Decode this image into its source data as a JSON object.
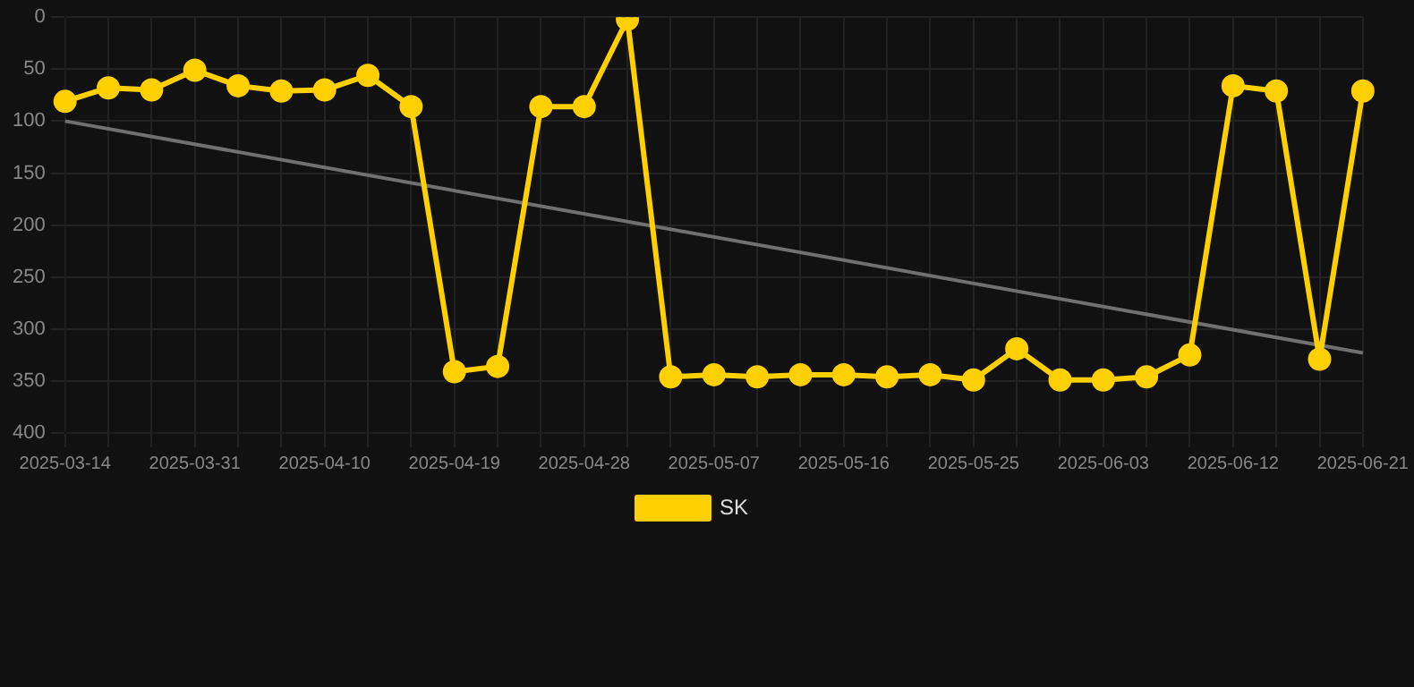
{
  "chart_data": {
    "type": "line",
    "categories": [
      "2025-03-14",
      null,
      null,
      "2025-03-31",
      null,
      null,
      "2025-04-10",
      null,
      null,
      "2025-04-19",
      null,
      null,
      "2025-04-28",
      null,
      null,
      "2025-05-07",
      null,
      null,
      "2025-05-16",
      null,
      null,
      "2025-05-25",
      null,
      null,
      "2025-06-03",
      null,
      null,
      "2025-06-12",
      null,
      null,
      "2025-06-21"
    ],
    "series": [
      {
        "name": "SK",
        "color": "#ffd000",
        "marker": "circle",
        "values": [
          81,
          68,
          70,
          51,
          66,
          71,
          70,
          56,
          86,
          341,
          336,
          86,
          86,
          2,
          346,
          344,
          346,
          344,
          344,
          346,
          344,
          349,
          319,
          349,
          349,
          346,
          325,
          66,
          71,
          329,
          71
        ]
      },
      {
        "type": "line",
        "color": "#707070",
        "marker": "none",
        "values": [
          100,
          null,
          null,
          null,
          null,
          null,
          null,
          null,
          null,
          null,
          null,
          null,
          null,
          null,
          null,
          null,
          null,
          null,
          null,
          null,
          null,
          null,
          null,
          null,
          null,
          null,
          null,
          null,
          null,
          null,
          323
        ]
      }
    ],
    "ylim": [
      400,
      0
    ],
    "yticks": [
      0,
      50,
      100,
      150,
      200,
      250,
      300,
      350,
      400
    ],
    "grid": true,
    "legend": "bottom"
  }
}
